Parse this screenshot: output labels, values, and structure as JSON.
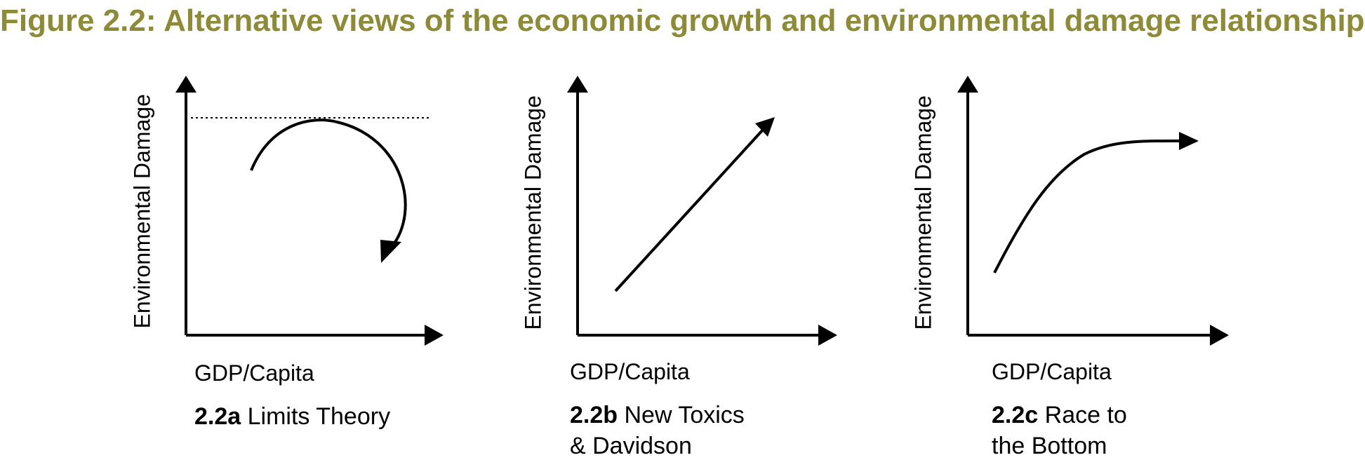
{
  "title": "Figure 2.2: Alternative views of the economic growth and environmental damage relationship",
  "colors": {
    "title": "#8d8b37",
    "lines": "#000000"
  },
  "panels": [
    {
      "id": "2.2a",
      "ylabel": "Environmental Damage",
      "xlabel": "GDP/Capita",
      "caption_bold": "2.2a",
      "caption_line1": "Limits Theory",
      "caption_line2": "",
      "curve": "limits-arc-with-dotted-ceiling"
    },
    {
      "id": "2.2b",
      "ylabel": "Environmental Damage",
      "xlabel": "GDP/Capita",
      "caption_bold": "2.2b",
      "caption_line1": "New Toxics",
      "caption_line2": "& Davidson",
      "curve": "rising-straight-line"
    },
    {
      "id": "2.2c",
      "ylabel": "Environmental Damage",
      "xlabel": "GDP/Capita",
      "caption_bold": "2.2c",
      "caption_line1": "Race to",
      "caption_line2": "the Bottom",
      "curve": "saturating-curve"
    }
  ]
}
